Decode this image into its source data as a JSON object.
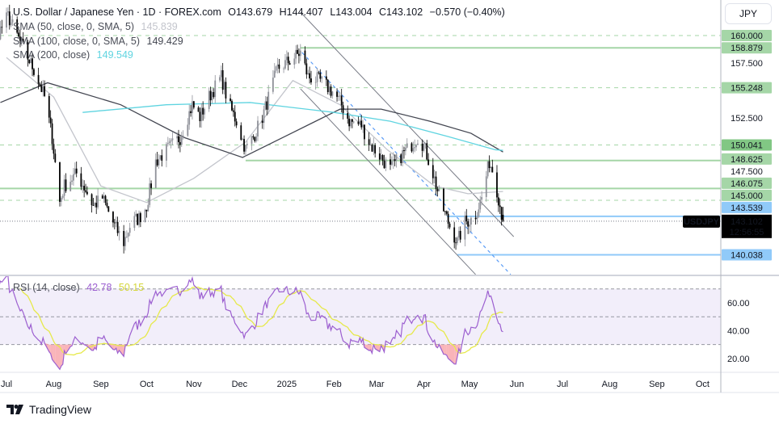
{
  "header": {
    "symbol": "U.S. Dollar / Japanese Yen · 1D · FOREX.com",
    "open": "O143.679",
    "high": "H144.407",
    "low": "L143.004",
    "close": "C143.102",
    "change": "−0.570 (−0.40%)",
    "indicators": [
      {
        "label": "SMA (50, close, 0, SMA, 5)",
        "value": "145.839",
        "color": "#c3c5cc"
      },
      {
        "label": "SMA (100, close, 0, SMA, 5)",
        "value": "149.429",
        "color": "#434651"
      },
      {
        "label": "SMA (200, close)",
        "value": "149.549",
        "color": "#5fd4e0"
      }
    ]
  },
  "currency_button": "JPY",
  "ticker_label": "USDJPY",
  "last_price": "143.102",
  "countdown": "12:56:55",
  "rsi_legend": {
    "label": "RSI (14, close)",
    "rsi": "42.78",
    "ma": "50.15",
    "rsi_color": "#9c5fd0",
    "ma_color": "#e6e94a"
  },
  "branding": "TradingView",
  "chart_data": {
    "type": "candlestick",
    "symbol": "USDJPY",
    "interval": "1D",
    "last_bar": {
      "open": 143.679,
      "high": 144.407,
      "low": 143.004,
      "close": 143.102
    },
    "close_path": [
      [
        "2024-06-03",
        156.5
      ],
      [
        "2024-06-20",
        158.8
      ],
      [
        "2024-07-02",
        161.76
      ],
      [
        "2024-07-12",
        158.82
      ],
      [
        "2024-07-20",
        156.62
      ],
      [
        "2024-07-26",
        154.41
      ],
      [
        "2024-07-31",
        150.74
      ],
      [
        "2024-08-05",
        144.85
      ],
      [
        "2024-08-08",
        146.32
      ],
      [
        "2024-08-16",
        147.43
      ],
      [
        "2024-08-22",
        145.96
      ],
      [
        "2024-08-27",
        144.49
      ],
      [
        "2024-09-02",
        145.22
      ],
      [
        "2024-09-10",
        142.65
      ],
      [
        "2024-09-16",
        141.18
      ],
      [
        "2024-09-21",
        143.01
      ],
      [
        "2024-09-26",
        143.38
      ],
      [
        "2024-10-01",
        144.49
      ],
      [
        "2024-10-07",
        148.53
      ],
      [
        "2024-10-12",
        149.26
      ],
      [
        "2024-10-23",
        150.74
      ],
      [
        "2024-10-31",
        153.68
      ],
      [
        "2024-11-05",
        152.57
      ],
      [
        "2024-11-11",
        154.41
      ],
      [
        "2024-11-19",
        156.25
      ],
      [
        "2024-11-24",
        153.68
      ],
      [
        "2024-11-29",
        152.21
      ],
      [
        "2024-12-05",
        149.63
      ],
      [
        "2024-12-10",
        150.74
      ],
      [
        "2024-12-16",
        152.57
      ],
      [
        "2024-12-21",
        154.78
      ],
      [
        "2024-12-26",
        156.99
      ],
      [
        "2025-01-03",
        157.72
      ],
      [
        "2025-01-10",
        158.46
      ],
      [
        "2025-01-15",
        156.25
      ],
      [
        "2025-01-23",
        155.88
      ],
      [
        "2025-02-01",
        154.78
      ],
      [
        "2025-02-06",
        153.68
      ],
      [
        "2025-02-11",
        152.21
      ],
      [
        "2025-02-19",
        151.84
      ],
      [
        "2025-02-25",
        150.0
      ],
      [
        "2025-03-02",
        149.26
      ],
      [
        "2025-03-10",
        147.79
      ],
      [
        "2025-03-16",
        148.9
      ],
      [
        "2025-03-21",
        149.63
      ],
      [
        "2025-03-28",
        150.74
      ],
      [
        "2025-04-01",
        150.0
      ],
      [
        "2025-04-07",
        147.43
      ],
      [
        "2025-04-12",
        144.85
      ],
      [
        "2025-04-18",
        142.65
      ],
      [
        "2025-04-23",
        141.18
      ],
      [
        "2025-04-28",
        143.01
      ],
      [
        "2025-05-04",
        143.38
      ],
      [
        "2025-05-09",
        145.22
      ],
      [
        "2025-05-14",
        148.53
      ],
      [
        "2025-05-17",
        147.43
      ],
      [
        "2025-05-20",
        145.22
      ],
      [
        "2025-05-23",
        143.102
      ]
    ],
    "sma": [
      {
        "name": "SMA 50",
        "color": "#c3c5cc",
        "points": [
          [
            "2024-07-01",
            158.0
          ],
          [
            "2024-08-01",
            154.4
          ],
          [
            "2024-09-01",
            146.3
          ],
          [
            "2024-10-01",
            144.8
          ],
          [
            "2024-11-01",
            147.0
          ],
          [
            "2024-12-05",
            150.3
          ],
          [
            "2025-01-05",
            155.9
          ],
          [
            "2025-02-05",
            153.7
          ],
          [
            "2025-03-08",
            149.6
          ],
          [
            "2025-04-08",
            146.3
          ],
          [
            "2025-04-30",
            145.6
          ],
          [
            "2025-05-23",
            145.8
          ]
        ]
      },
      {
        "name": "SMA 100",
        "color": "#434651",
        "points": [
          [
            "2024-06-27",
            153.9
          ],
          [
            "2024-07-28",
            155.7
          ],
          [
            "2024-09-14",
            153.7
          ],
          [
            "2024-10-26",
            150.7
          ],
          [
            "2024-12-03",
            148.9
          ],
          [
            "2025-01-04",
            151.1
          ],
          [
            "2025-02-05",
            153.3
          ],
          [
            "2025-03-04",
            153.3
          ],
          [
            "2025-04-05",
            152.2
          ],
          [
            "2025-05-02",
            151.1
          ],
          [
            "2025-05-23",
            149.4
          ]
        ]
      },
      {
        "name": "SMA 200",
        "color": "#5fd4e0",
        "points": [
          [
            "2024-08-20",
            153.0
          ],
          [
            "2024-10-14",
            153.7
          ],
          [
            "2024-12-08",
            153.9
          ],
          [
            "2025-02-01",
            153.0
          ],
          [
            "2025-03-10",
            152.2
          ],
          [
            "2025-04-17",
            150.8
          ],
          [
            "2025-05-18",
            149.6
          ],
          [
            "2025-05-23",
            149.55
          ]
        ]
      }
    ],
    "levels": [
      {
        "price": 160.0,
        "style": "dashed",
        "color": "#a5d6a7",
        "label_bg": "#a5d6a7"
      },
      {
        "price": 158.879,
        "style": "solid",
        "from": "2025-01-10",
        "color": "#a5d6a7",
        "label_bg": "#a5d6a7"
      },
      {
        "price": 155.248,
        "style": "dashed",
        "color": "#a5d6a7",
        "label_bg": "#a5d6a7"
      },
      {
        "price": 150.041,
        "style": "dashed",
        "color": "#a5d6a7",
        "label_bg": "#81c784"
      },
      {
        "price": 148.625,
        "style": "solid",
        "from": "2024-12-05",
        "color": "#a5d6a7",
        "label_bg": "#a5d6a7"
      },
      {
        "price": 146.075,
        "style": "solid",
        "color": "#a5d6a7",
        "label_bg": "#a5d6a7"
      },
      {
        "price": 145.0,
        "style": "dashed",
        "color": "#a5d6a7",
        "label_bg": "#a5d6a7"
      },
      {
        "price": 143.539,
        "style": "solid",
        "from": "2025-04-16",
        "color": "#90caf9",
        "label_bg": "#90caf9"
      },
      {
        "price": 140.038,
        "style": "solid",
        "from": "2025-04-23",
        "color": "#90caf9",
        "label_bg": "#90caf9"
      }
    ],
    "trendlines": [
      {
        "from": [
          "2025-01-10",
          162.13
        ],
        "to": [
          "2025-05-30",
          141.69
        ],
        "color": "#787b86",
        "style": "solid"
      },
      {
        "from": [
          "2025-01-10",
          155.15
        ],
        "to": [
          "2025-05-05",
          138.24
        ],
        "color": "#787b86",
        "style": "solid"
      },
      {
        "from": [
          "2025-01-11",
          158.46
        ],
        "to": [
          "2025-05-28",
          138.24
        ],
        "color": "#5b9cf6",
        "style": "dashed"
      }
    ],
    "price_ticks": [
      "157.500",
      "152.500",
      "147.500"
    ],
    "time_ticks": [
      [
        "2024-07-01",
        "Jul"
      ],
      [
        "2024-08-01",
        "Aug"
      ],
      [
        "2024-09-01",
        "Sep"
      ],
      [
        "2024-10-01",
        "Oct"
      ],
      [
        "2024-11-01",
        "Nov"
      ],
      [
        "2024-12-01",
        "Dec"
      ],
      [
        "2025-01-01",
        "2025"
      ],
      [
        "2025-02-01",
        "Feb"
      ],
      [
        "2025-03-01",
        "Mar"
      ],
      [
        "2025-04-01",
        "Apr"
      ],
      [
        "2025-05-01",
        "May"
      ],
      [
        "2025-06-01",
        "Jun"
      ],
      [
        "2025-07-01",
        "Jul"
      ],
      [
        "2025-08-01",
        "Aug"
      ],
      [
        "2025-09-01",
        "Sep"
      ],
      [
        "2025-10-01",
        "Oct"
      ]
    ],
    "rsi": {
      "length": 14,
      "ma_length": 14,
      "bands": [
        70,
        30
      ],
      "mid": 50,
      "ticks": [
        "60.00",
        "40.00",
        "20.00"
      ]
    },
    "colors": {
      "up": "#8f9199",
      "down": "#000000",
      "rsi_fill": "#f2eefa",
      "oversold_fill": "#f7a1a8"
    }
  }
}
